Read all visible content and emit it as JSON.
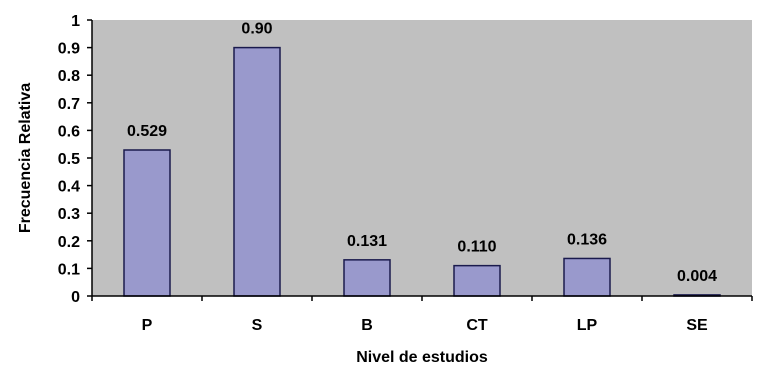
{
  "chart_data": {
    "type": "bar",
    "categories": [
      "P",
      "S",
      "B",
      "CT",
      "LP",
      "SE"
    ],
    "values": [
      0.529,
      0.9,
      0.131,
      0.11,
      0.136,
      0.004
    ],
    "data_labels": [
      "0.529",
      "0.90",
      "0.131",
      "0.110",
      "0.136",
      "0.004"
    ],
    "xlabel": "Nivel de estudios",
    "ylabel": "Frecuencia Relativa",
    "ylim": [
      0,
      1
    ],
    "yticks": [
      "0",
      "0.1",
      "0.2",
      "0.3",
      "0.4",
      "0.5",
      "0.6",
      "0.7",
      "0.8",
      "0.9",
      "1"
    ],
    "grid": false,
    "legend": "none",
    "colors": {
      "plot_background": "#c0c0c0",
      "bar_fill": "#9999cc",
      "bar_stroke": "#1a1a4d",
      "axis": "#000000"
    }
  }
}
